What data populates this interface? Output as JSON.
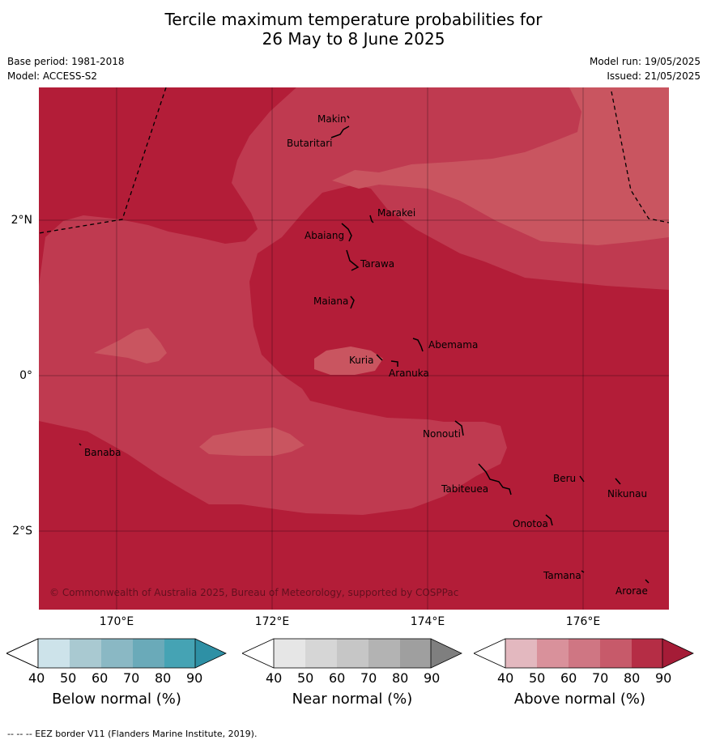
{
  "header": {
    "title_line1": "Tercile maximum temperature probabilities for",
    "title_line2": "26 May to 8 June 2025",
    "base_period": "Base period: 1981-2018",
    "model": "Model: ACCESS-S2",
    "model_run": "Model run: 19/05/2025",
    "issued": "Issued: 21/05/2025"
  },
  "map": {
    "copyright": "© Commonwealth of Australia 2025, Bureau of Meteorology, supported by COSPPac",
    "lon_labels": [
      "170°E",
      "172°E",
      "174°E",
      "176°E"
    ],
    "lat_labels": [
      "2°N",
      "0°",
      "2°S"
    ],
    "places": [
      "Makin",
      "Butaritari",
      "Marakei",
      "Abaiang",
      "Tarawa",
      "Maiana",
      "Abemama",
      "Kuria",
      "Aranuka",
      "Nonouti",
      "Banaba",
      "Tabiteuea",
      "Beru",
      "Nikunau",
      "Onotoa",
      "Tamana",
      "Arorae"
    ],
    "colors": {
      "above_90": "#b31d38",
      "above_80": "#bf3a50",
      "above_70": "#c95560"
    }
  },
  "legends": [
    {
      "title": "Below normal (%)",
      "ticks": [
        "40",
        "50",
        "60",
        "70",
        "80",
        "90"
      ],
      "colors": [
        "#ffffff",
        "#cde3ea",
        "#a9c9d1",
        "#8ab8c4",
        "#6aaab9",
        "#45a3b4",
        "#2e90a5"
      ]
    },
    {
      "title": "Near normal (%)",
      "ticks": [
        "40",
        "50",
        "60",
        "70",
        "80",
        "90"
      ],
      "colors": [
        "#ffffff",
        "#e6e6e6",
        "#d6d6d6",
        "#c6c6c6",
        "#b3b3b3",
        "#9f9f9f",
        "#7f7f7f"
      ]
    },
    {
      "title": "Above normal (%)",
      "ticks": [
        "40",
        "50",
        "60",
        "70",
        "80",
        "90"
      ],
      "colors": [
        "#ffffff",
        "#e3b8bf",
        "#d9919b",
        "#cf7683",
        "#c75a6a",
        "#b52d45",
        "#a51c37"
      ]
    }
  ],
  "footnote": "--  --  -- EEZ border V11 (Flanders Marine Institute, 2019)."
}
